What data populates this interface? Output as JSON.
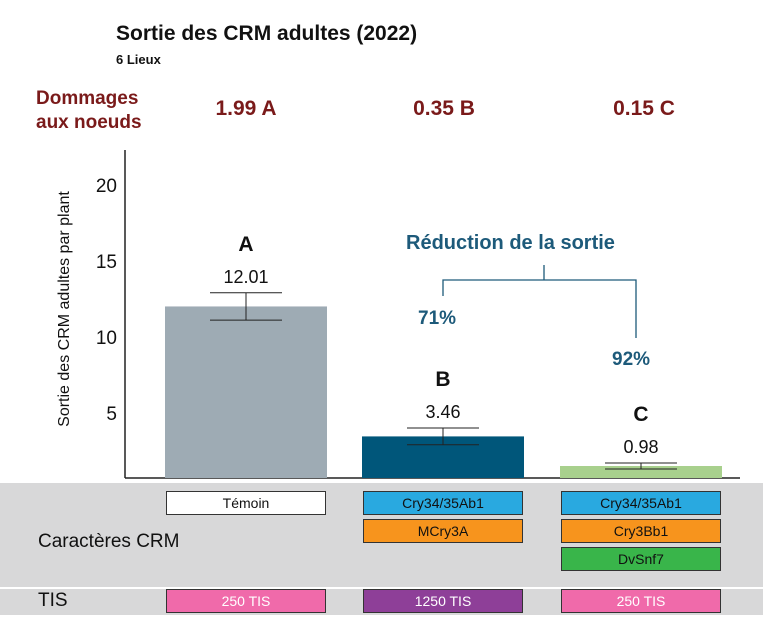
{
  "header": {
    "title": "Sortie des CRM adultes (2022)",
    "subtitle": "6 Lieux"
  },
  "damage": {
    "label_line1": "Dommages",
    "label_line2": "aux noeuds",
    "values": [
      "1.99  A",
      "0.35  B",
      "0.15  C"
    ]
  },
  "annotation": {
    "title": "Réduction de la sortie",
    "reductions": [
      "71%",
      "92%"
    ]
  },
  "chart_data": {
    "type": "bar",
    "title": "Sortie des CRM adultes (2022)",
    "ylabel": "Sortie des CRM adultes par plant",
    "xlabel": "",
    "yticks": [
      5,
      10,
      15,
      20
    ],
    "ytick_labels": [
      "5",
      "10",
      "15",
      "20"
    ],
    "ylim": [
      0.7,
      22
    ],
    "categories": [
      "Témoin",
      "Cry34/35Ab1 + MCry3A",
      "Cry34/35Ab1 + Cry3Bb1 + DvSnf7"
    ],
    "values": [
      12.01,
      3.46,
      0.98
    ],
    "value_labels": [
      "12.01",
      "3.46",
      "0.98"
    ],
    "letters": [
      "A",
      "B",
      "C"
    ],
    "error": [
      0.9,
      0.55,
      0.2
    ],
    "colors": [
      "#9eabb4",
      "#00567a",
      "#a8d08d"
    ],
    "grid": false
  },
  "traits": {
    "row_label": "Caractères CRM",
    "columns": [
      [
        {
          "label": "Témoin",
          "color": "#ffffff",
          "text": "#111"
        }
      ],
      [
        {
          "label": "Cry34/35Ab1",
          "color": "#29a9e0",
          "text": "#111"
        },
        {
          "label": "MCry3A",
          "color": "#f7941d",
          "text": "#111"
        }
      ],
      [
        {
          "label": "Cry34/35Ab1",
          "color": "#29a9e0",
          "text": "#111"
        },
        {
          "label": "Cry3Bb1",
          "color": "#f7941d",
          "text": "#111"
        },
        {
          "label": "DvSnf7",
          "color": "#39b54a",
          "text": "#111"
        }
      ]
    ]
  },
  "tis": {
    "row_label": "TIS",
    "values": [
      {
        "label": "250 TIS",
        "color": "#f06aaa"
      },
      {
        "label": "1250 TIS",
        "color": "#8e3f98"
      },
      {
        "label": "250 TIS",
        "color": "#f06aaa"
      }
    ]
  }
}
